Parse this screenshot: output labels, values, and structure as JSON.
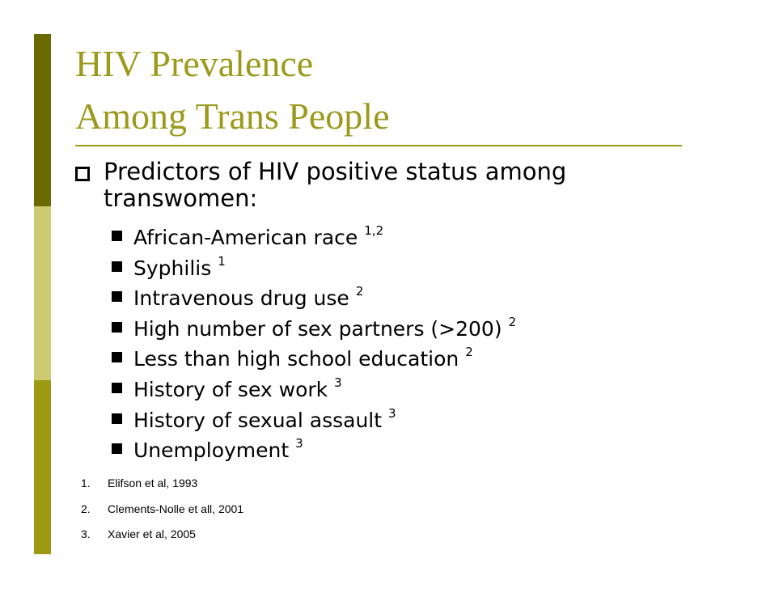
{
  "slide": {
    "title": [
      "HIV Prevalence",
      "Among Trans People"
    ],
    "bullet": "Predictors of HIV positive status among transwomen:",
    "items": [
      {
        "text": "African-American race",
        "sup": "1,2"
      },
      {
        "text": "Syphilis",
        "sup": "1"
      },
      {
        "text": "Intravenous drug use",
        "sup": "2"
      },
      {
        "text": "High number of sex partners (>200)",
        "sup": "2"
      },
      {
        "text": "Less than high school education",
        "sup": "2"
      },
      {
        "text": "History of sex work",
        "sup": "3"
      },
      {
        "text": "History of sexual assault",
        "sup": "3"
      },
      {
        "text": "Unemployment",
        "sup": "3"
      }
    ],
    "references": [
      {
        "number": "1.",
        "text": "Elifson et al, 1993"
      },
      {
        "number": "2.",
        "text": "Clements-Nolle et all, 2001"
      },
      {
        "number": "3.",
        "text": "Xavier et al, 2005"
      }
    ]
  }
}
